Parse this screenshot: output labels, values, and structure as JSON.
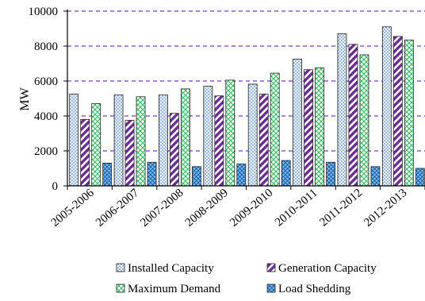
{
  "chart_data": {
    "type": "bar",
    "title": "",
    "xlabel": "",
    "ylabel": "MW",
    "ylim": [
      0,
      10000
    ],
    "yticks": [
      "0",
      "2000",
      "4000",
      "6000",
      "8000",
      "10000"
    ],
    "grid": "horizontal dashed",
    "legend_position": "bottom",
    "categories": [
      "2005-2006",
      "2006-2007",
      "2007-2008",
      "2008-2009",
      "2009-2010",
      "2010-2011",
      "2011-2012",
      "2012-2013"
    ],
    "series": [
      {
        "name": "Installed Capacity",
        "pattern": "dots",
        "color": "#dde8f4",
        "values": [
          5250,
          5200,
          5200,
          5700,
          5820,
          7250,
          8700,
          9100
        ]
      },
      {
        "name": "Generation Capacity",
        "pattern": "diagonal-stripes",
        "color": "#6a2c91",
        "values": [
          3800,
          3750,
          4150,
          5150,
          5250,
          6650,
          8100,
          8550
        ]
      },
      {
        "name": "Maximum Demand",
        "pattern": "crosshatch",
        "color": "#8fdca8",
        "values": [
          4700,
          5100,
          5550,
          6050,
          6450,
          6750,
          7500,
          8350
        ]
      },
      {
        "name": "Load Shedding",
        "pattern": "diamond-grid",
        "color": "#3a8fd8",
        "values": [
          1300,
          1350,
          1100,
          1250,
          1450,
          1350,
          1100,
          1000
        ]
      }
    ]
  }
}
